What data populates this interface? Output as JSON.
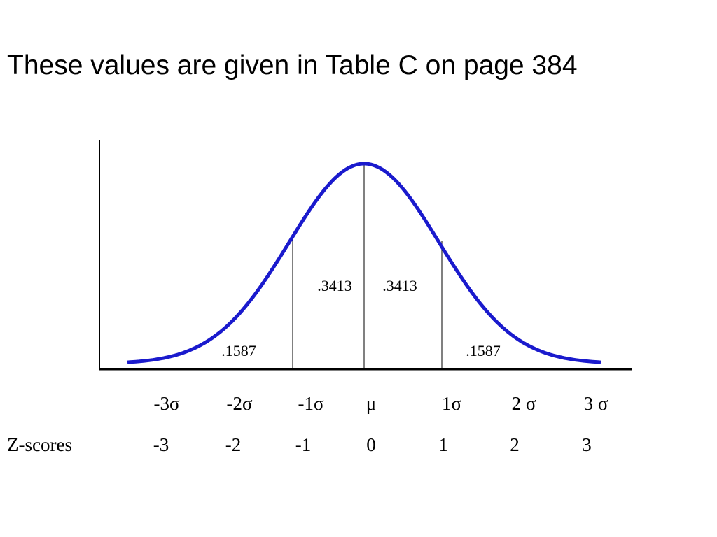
{
  "header": {
    "title": "These values are given in Table C on page 384"
  },
  "areas": [
    ".1587",
    ".3413",
    ".3413",
    ".1587"
  ],
  "sigma_labels": [
    "-3σ",
    "-2σ",
    "-1σ",
    "μ",
    "1σ",
    "2 σ",
    "3 σ"
  ],
  "z_scores": {
    "label": "Z-scores",
    "values": [
      "-3",
      "-2",
      "-1",
      "0",
      "1",
      "2",
      "3"
    ]
  }
}
